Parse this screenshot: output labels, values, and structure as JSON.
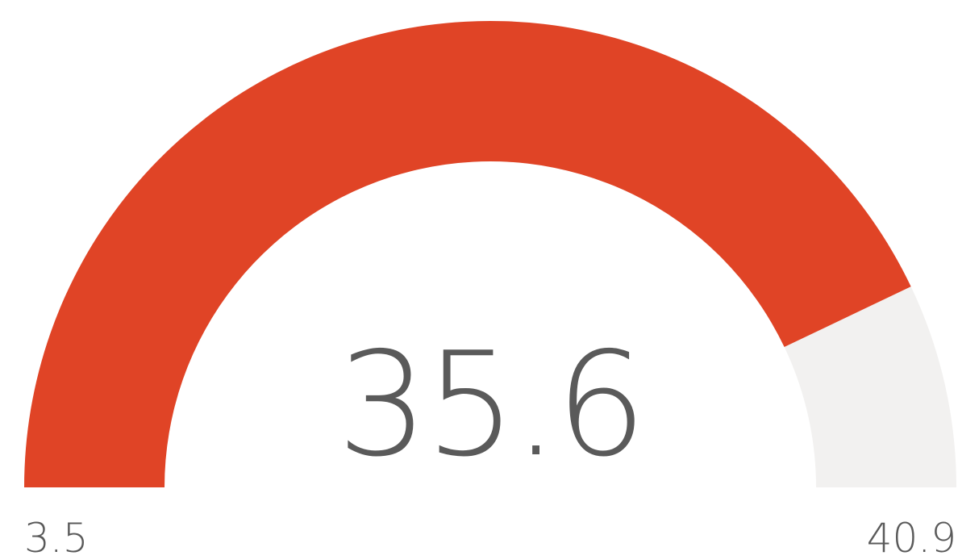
{
  "chart_data": {
    "type": "gauge",
    "value": 35.6,
    "min": 3.5,
    "max": 40.9,
    "value_label": "35.6",
    "min_label": "3.5",
    "max_label": "40.9",
    "colors": {
      "fill": "#e04426",
      "track": "#f2f1f0",
      "text": "#5a5a5a"
    }
  }
}
